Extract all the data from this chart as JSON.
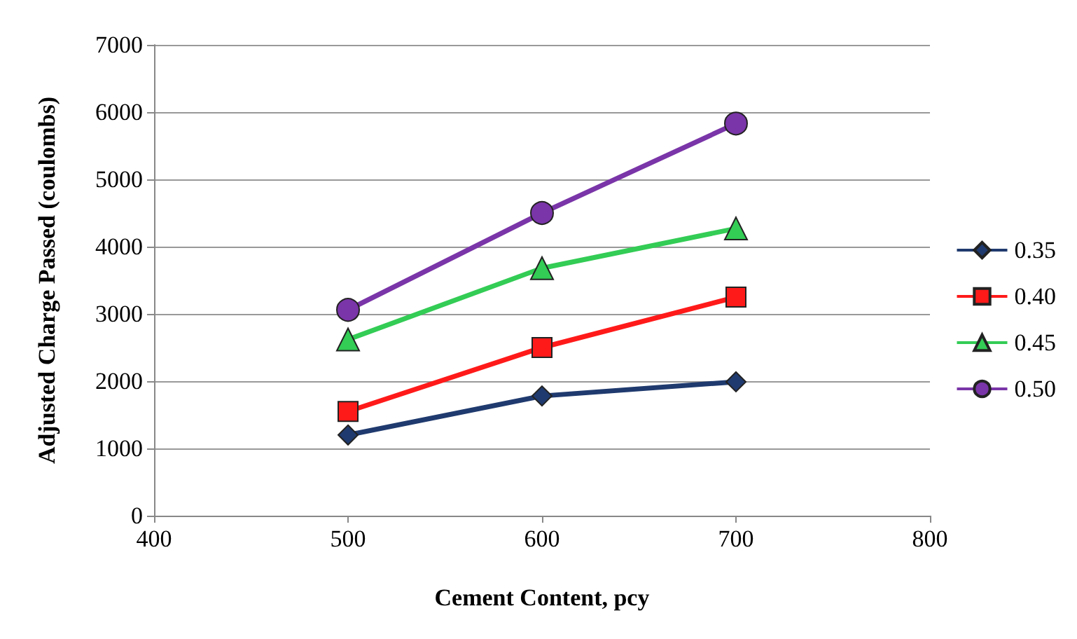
{
  "chart_data": {
    "type": "line",
    "xlabel": "Cement Content, pcy",
    "ylabel": "Adjusted Charge Passed (coulombs)",
    "x": [
      500,
      600,
      700
    ],
    "series": [
      {
        "name": "0.35",
        "color": "#1f3a6e",
        "marker": "diamond",
        "values": [
          1200,
          1780,
          1990
        ]
      },
      {
        "name": "0.40",
        "color": "#ff1a1a",
        "marker": "square",
        "values": [
          1550,
          2500,
          3250
        ]
      },
      {
        "name": "0.45",
        "color": "#33cc55",
        "marker": "triangle",
        "values": [
          2620,
          3680,
          4270
        ]
      },
      {
        "name": "0.50",
        "color": "#7a35a8",
        "marker": "circle",
        "values": [
          3060,
          4500,
          5830
        ]
      }
    ],
    "xlim": [
      400,
      800
    ],
    "xticks": [
      400,
      500,
      600,
      700,
      800
    ],
    "ylim": [
      0,
      7000
    ],
    "yticks": [
      0,
      1000,
      2000,
      3000,
      4000,
      5000,
      6000,
      7000
    ],
    "grid": "y",
    "legend": "right",
    "line_style": "solid"
  }
}
